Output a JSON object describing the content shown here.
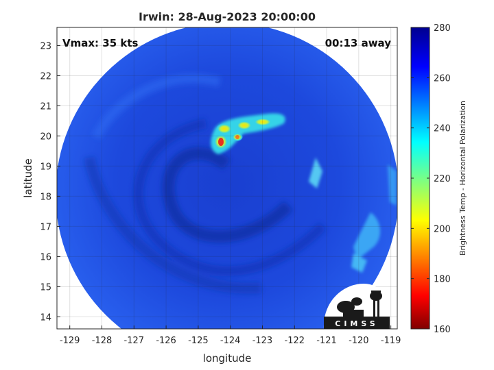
{
  "title": "Irwin: 28-Aug-2023 20:00:00",
  "vmax_label": "Vmax: 35 kts",
  "time_away_label": "00:13 away",
  "x_axis": {
    "label": "longitude",
    "range": [
      -129.4,
      -118.8
    ],
    "ticks": [
      -129,
      -128,
      -127,
      -126,
      -125,
      -124,
      -123,
      -122,
      -121,
      -120,
      -119
    ]
  },
  "y_axis": {
    "label": "latitude",
    "range": [
      13.6,
      23.6
    ],
    "ticks": [
      14,
      15,
      16,
      17,
      18,
      19,
      20,
      21,
      22,
      23
    ]
  },
  "grid": true,
  "colorbar": {
    "label": "Brightness Temp - Horizontal Polarization",
    "range": [
      160,
      280
    ],
    "ticks": [
      160,
      180,
      200,
      220,
      240,
      260,
      280
    ],
    "colormap": "jet"
  },
  "logo": {
    "text": "CIMSS"
  },
  "colors": {
    "background": "#ffffff",
    "ocean_blue": "#1f4fe0",
    "deep_blue": "#1436b4",
    "cold_yellow": "#f4e23a",
    "cold_red": "#d71414"
  }
}
